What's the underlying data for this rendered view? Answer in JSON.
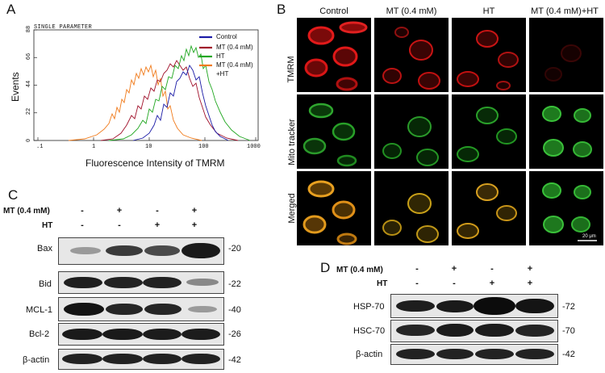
{
  "panels": {
    "a": "A",
    "b": "B",
    "c": "C",
    "d": "D"
  },
  "panel_a": {
    "header": "SINGLE PARAMETER",
    "ylabel": "Events",
    "xlabel": "Fluorescence Intensity of TMRM",
    "y_ticks": [
      "0",
      "22",
      "44",
      "66",
      "88"
    ],
    "x_ticks": [
      ".1",
      "1",
      "10",
      "100",
      "1000"
    ],
    "legend": [
      {
        "label": "Control",
        "color": "#1a1aa6"
      },
      {
        "label": "MT (0.4 mM)",
        "color": "#a0102a"
      },
      {
        "label": "HT",
        "color": "#1fa61f"
      },
      {
        "label": "MT (0.4 mM)",
        "label2": "+HT",
        "color": "#f07a1a"
      }
    ]
  },
  "panel_b": {
    "columns": [
      "Control",
      "MT (0.4 mM)",
      "HT",
      "MT (0.4 mM)+HT"
    ],
    "rows": [
      "TMRM",
      "Mito tracker",
      "Merged"
    ],
    "scale_bar": "20 μm"
  },
  "panel_c": {
    "treatments": [
      {
        "label": "MT (0.4 mM)",
        "signs": [
          "-",
          "+",
          "-",
          "+"
        ]
      },
      {
        "label": "HT",
        "signs": [
          "-",
          "-",
          "+",
          "+"
        ]
      }
    ],
    "blots": [
      {
        "label": "Bax",
        "mw": "-20"
      },
      {
        "label": "Bid",
        "mw": "-22"
      },
      {
        "label": "MCL-1",
        "mw": "-40"
      },
      {
        "label": "Bcl-2",
        "mw": "-26"
      },
      {
        "label": "β-actin",
        "mw": "-42"
      }
    ]
  },
  "panel_d": {
    "treatments": [
      {
        "label": "MT (0.4 mM)",
        "signs": [
          "-",
          "+",
          "-",
          "+"
        ]
      },
      {
        "label": "HT",
        "signs": [
          "-",
          "-",
          "+",
          "+"
        ]
      }
    ],
    "blots": [
      {
        "label": "HSP-70",
        "mw": "-72"
      },
      {
        "label": "HSC-70",
        "mw": "-70"
      },
      {
        "label": "β-actin",
        "mw": "-42"
      }
    ]
  }
}
